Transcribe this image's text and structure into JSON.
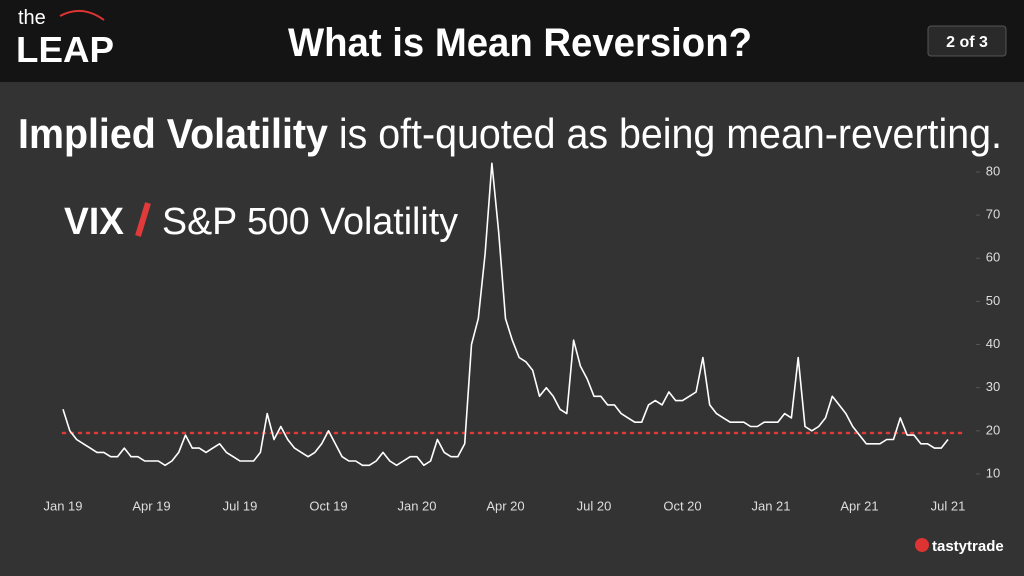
{
  "header": {
    "logo_top": "the",
    "logo_main": "LEAP",
    "title": "What is Mean Reversion?",
    "page": "2 of 3"
  },
  "subtitle": {
    "bold": "Implied Volatility",
    "rest": " is oft-quoted as being mean-reverting."
  },
  "footer": {
    "logo": "tastytrade"
  },
  "chart_data": {
    "type": "line",
    "title": "VIX",
    "subtitle": "S&P 500 Volatility",
    "color": "#ffffff",
    "mean_line": 19.5,
    "mean_color": "#e03a3a",
    "ylim": [
      8,
      83
    ],
    "yticks": [
      10,
      20,
      30,
      40,
      50,
      60,
      70,
      80
    ],
    "categories": [
      "Jan 19",
      null,
      null,
      null,
      null,
      null,
      null,
      null,
      null,
      null,
      null,
      null,
      null,
      "Apr 19",
      null,
      null,
      null,
      null,
      null,
      null,
      null,
      null,
      null,
      null,
      null,
      null,
      "Jul 19",
      null,
      null,
      null,
      null,
      null,
      null,
      null,
      null,
      null,
      null,
      null,
      null,
      "Oct 19",
      null,
      null,
      null,
      null,
      null,
      null,
      null,
      null,
      null,
      null,
      null,
      null,
      "Jan 20",
      null,
      null,
      null,
      null,
      null,
      null,
      null,
      null,
      null,
      null,
      null,
      null,
      "Apr 20",
      null,
      null,
      null,
      null,
      null,
      null,
      null,
      null,
      null,
      null,
      null,
      null,
      "Jul 20",
      null,
      null,
      null,
      null,
      null,
      null,
      null,
      null,
      null,
      null,
      null,
      null,
      "Oct 20",
      null,
      null,
      null,
      null,
      null,
      null,
      null,
      null,
      null,
      null,
      null,
      null,
      "Jan 21",
      null,
      null,
      null,
      null,
      null,
      null,
      null,
      null,
      null,
      null,
      null,
      null,
      "Apr 21",
      null,
      null,
      null,
      null,
      null,
      null,
      null,
      null,
      null,
      null,
      null,
      null,
      "Jul 21"
    ],
    "values": [
      25,
      20,
      18,
      17,
      16,
      15,
      15,
      14,
      14,
      16,
      14,
      14,
      13,
      13,
      13,
      12,
      13,
      15,
      19,
      16,
      16,
      15,
      16,
      17,
      15,
      14,
      13,
      13,
      13,
      15,
      24,
      18,
      21,
      18,
      16,
      15,
      14,
      15,
      17,
      20,
      17,
      14,
      13,
      13,
      12,
      12,
      13,
      15,
      13,
      12,
      13,
      14,
      14,
      12,
      13,
      18,
      15,
      14,
      14,
      17,
      40,
      46,
      61,
      82,
      66,
      46,
      41,
      37,
      36,
      34,
      28,
      30,
      28,
      25,
      24,
      41,
      35,
      32,
      28,
      28,
      26,
      26,
      24,
      23,
      22,
      22,
      26,
      27,
      26,
      29,
      27,
      27,
      28,
      29,
      37,
      26,
      24,
      23,
      22,
      22,
      22,
      21,
      21,
      22,
      22,
      22,
      24,
      23,
      37,
      21,
      20,
      21,
      23,
      28,
      26,
      24,
      21,
      19,
      17,
      17,
      17,
      18,
      18,
      23,
      19,
      19,
      17,
      17,
      16,
      16,
      18
    ]
  }
}
